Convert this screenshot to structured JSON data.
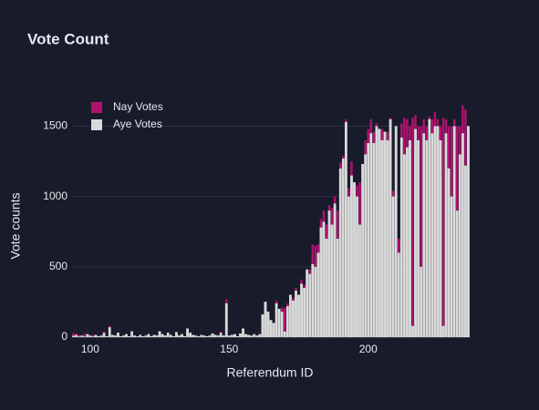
{
  "chart_data": {
    "type": "bar",
    "stacked": true,
    "title": "Vote Count",
    "x_label": "Referendum ID",
    "y_label": "Vote counts",
    "x": [
      94,
      95,
      96,
      97,
      98,
      99,
      100,
      101,
      102,
      103,
      104,
      105,
      106,
      107,
      108,
      109,
      110,
      111,
      112,
      113,
      114,
      115,
      116,
      117,
      118,
      119,
      120,
      121,
      122,
      123,
      124,
      125,
      126,
      127,
      128,
      129,
      130,
      131,
      132,
      133,
      134,
      135,
      136,
      137,
      138,
      139,
      140,
      141,
      142,
      143,
      144,
      145,
      146,
      147,
      148,
      149,
      150,
      151,
      152,
      153,
      154,
      155,
      156,
      157,
      158,
      159,
      160,
      161,
      162,
      163,
      164,
      165,
      166,
      167,
      168,
      169,
      170,
      171,
      172,
      173,
      174,
      175,
      176,
      177,
      178,
      179,
      180,
      181,
      182,
      183,
      184,
      185,
      186,
      187,
      188,
      189,
      190,
      191,
      192,
      193,
      194,
      195,
      196,
      197,
      198,
      199,
      200,
      201,
      202,
      203,
      204,
      205,
      206,
      207,
      208,
      209,
      210,
      211,
      212,
      213,
      214,
      215,
      216,
      217,
      218,
      219,
      220,
      221,
      222,
      223,
      224,
      225,
      226,
      227,
      228,
      229,
      230,
      231,
      232,
      233,
      234,
      235,
      236
    ],
    "series": [
      {
        "name": "Nay Votes",
        "color": "#b0116f",
        "values": [
          20,
          10,
          10,
          0,
          20,
          0,
          0,
          10,
          0,
          0,
          0,
          10,
          0,
          10,
          0,
          0,
          0,
          0,
          0,
          0,
          0,
          0,
          0,
          0,
          0,
          0,
          0,
          0,
          0,
          0,
          0,
          0,
          0,
          0,
          0,
          0,
          0,
          0,
          0,
          0,
          0,
          0,
          0,
          0,
          0,
          0,
          0,
          0,
          0,
          0,
          0,
          0,
          0,
          10,
          0,
          30,
          0,
          0,
          0,
          0,
          0,
          0,
          0,
          0,
          0,
          0,
          0,
          0,
          0,
          0,
          0,
          0,
          0,
          20,
          0,
          30,
          170,
          20,
          0,
          20,
          20,
          0,
          30,
          20,
          0,
          30,
          140,
          150,
          60,
          60,
          80,
          100,
          40,
          120,
          50,
          200,
          40,
          20,
          20,
          60,
          100,
          0,
          80,
          300,
          0,
          100,
          100,
          100,
          80,
          20,
          0,
          80,
          0,
          60,
          10,
          40,
          0,
          100,
          100,
          260,
          200,
          100,
          1480,
          100,
          100,
          1000,
          100,
          100,
          20,
          100,
          100,
          50,
          100,
          1480,
          100,
          300,
          500,
          50,
          600,
          200,
          200,
          400,
          0
        ]
      },
      {
        "name": "Aye Votes",
        "color": "#d9d9d9",
        "values": [
          10,
          15,
          5,
          10,
          5,
          20,
          10,
          5,
          15,
          5,
          10,
          30,
          5,
          70,
          15,
          10,
          30,
          5,
          10,
          20,
          5,
          40,
          10,
          5,
          15,
          5,
          10,
          20,
          5,
          15,
          10,
          40,
          20,
          10,
          30,
          15,
          5,
          35,
          10,
          20,
          5,
          60,
          30,
          15,
          10,
          5,
          15,
          10,
          5,
          10,
          25,
          15,
          10,
          30,
          10,
          240,
          10,
          15,
          20,
          5,
          25,
          60,
          20,
          15,
          10,
          20,
          10,
          20,
          160,
          250,
          180,
          120,
          100,
          240,
          200,
          180,
          40,
          220,
          300,
          260,
          330,
          300,
          380,
          350,
          480,
          450,
          520,
          500,
          600,
          780,
          820,
          700,
          900,
          800,
          950,
          700,
          1200,
          1270,
          1530,
          1000,
          1150,
          1100,
          1000,
          800,
          1230,
          1300,
          1380,
          1450,
          1380,
          1500,
          1480,
          1400,
          1460,
          1400,
          1550,
          1000,
          1500,
          600,
          1420,
          1300,
          1350,
          1400,
          80,
          1480,
          1400,
          500,
          1450,
          1400,
          1550,
          1450,
          1500,
          1500,
          1400,
          80,
          1450,
          1200,
          1000,
          1500,
          900,
          1300,
          1450,
          1220,
          1500
        ]
      }
    ],
    "xlim": [
      93.8,
      236.5
    ],
    "xticks": [
      100,
      150,
      200
    ],
    "ylim": [
      0,
      1750
    ],
    "yticks": [
      0,
      500,
      1000,
      1500
    ],
    "grid": true,
    "legend": "top-left"
  }
}
